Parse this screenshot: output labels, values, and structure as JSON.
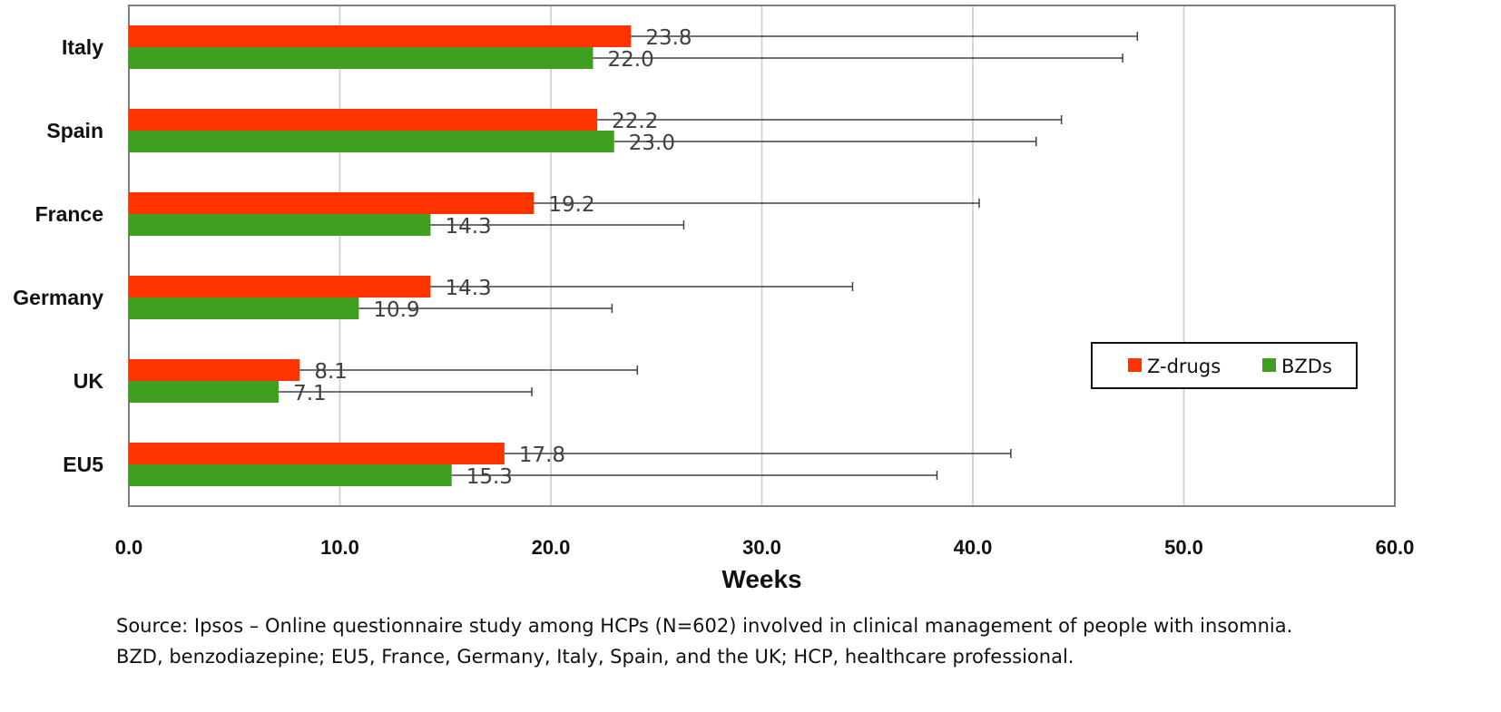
{
  "chart_data": {
    "type": "bar",
    "orientation": "horizontal",
    "title": "",
    "xlabel": "Weeks",
    "ylabel": "",
    "categories": [
      "Italy",
      "Spain",
      "France",
      "Germany",
      "UK",
      "EU5"
    ],
    "series": [
      {
        "name": "Z-drugs",
        "color": "#ff3300",
        "values": [
          23.8,
          22.2,
          19.2,
          14.3,
          8.1,
          17.8
        ],
        "error_upper": [
          47.8,
          44.2,
          40.3,
          34.3,
          24.1,
          41.8
        ],
        "labels": [
          "23.8",
          "22.2",
          "19.2",
          "14.3",
          "8.1",
          "17.8"
        ]
      },
      {
        "name": "BZDs",
        "color": "#3f9f1f",
        "values": [
          22.0,
          23.0,
          14.3,
          10.9,
          7.1,
          15.3
        ],
        "error_upper": [
          47.1,
          43.0,
          26.3,
          22.9,
          19.1,
          38.3
        ],
        "labels": [
          "22.0",
          "23.0",
          "14.3",
          "10.9",
          "7.1",
          "15.3"
        ]
      }
    ],
    "xlim": [
      0,
      60
    ],
    "xticks": [
      0,
      10,
      20,
      30,
      40,
      50,
      60
    ],
    "xtick_labels": [
      "0.0",
      "10.0",
      "20.0",
      "30.0",
      "40.0",
      "50.0",
      "60.0"
    ],
    "grid": true,
    "legend_position": "right"
  },
  "footnote": {
    "line1": "Source: Ipsos – Online questionnaire study among HCPs (N=602) involved in clinical management of people with insomnia.",
    "line2": "BZD, benzodiazepine; EU5, France, Germany, Italy, Spain, and the UK; HCP, healthcare professional."
  }
}
